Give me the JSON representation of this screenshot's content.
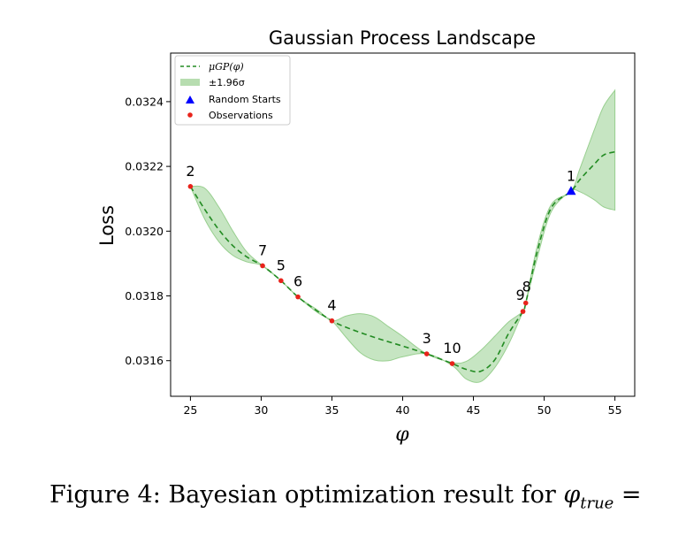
{
  "chart_data": {
    "type": "line",
    "title": "Gaussian Process Landscape",
    "xlabel": "φ",
    "ylabel": "Loss",
    "xlim": [
      23.6,
      56.4
    ],
    "ylim": [
      0.03149,
      0.03255
    ],
    "xticks": [
      25,
      30,
      35,
      40,
      45,
      50,
      55
    ],
    "yticks": [
      0.0316,
      0.0318,
      0.032,
      0.0322,
      0.0324
    ],
    "ytick_labels": [
      "0.0316",
      "0.0318",
      "0.0320",
      "0.0322",
      "0.0324"
    ],
    "grid": false,
    "legend": {
      "position": "top-left",
      "entries": [
        {
          "label": "μGP(φ)",
          "kind": "dashed-line",
          "color": "#228b22"
        },
        {
          "label": "±1.96σ",
          "kind": "band",
          "color": "#98cf8f"
        },
        {
          "label": "Random Starts",
          "kind": "triangle-marker",
          "color": "#0000ff"
        },
        {
          "label": "Observations",
          "kind": "dot-marker",
          "color": "#e8231b"
        }
      ]
    },
    "series": [
      {
        "name": "μGP(φ)",
        "x": [
          25,
          26,
          27,
          28,
          29,
          30.1,
          31.4,
          32.6,
          34,
          35,
          36,
          38,
          40,
          41.7,
          43.5,
          44.5,
          45.5,
          46.5,
          47.5,
          48.5,
          48.7,
          49.5,
          50.5,
          51.9,
          52.5,
          53.5,
          54.2,
          55
        ],
        "y": [
          0.032138,
          0.032068,
          0.032005,
          0.031955,
          0.03192,
          0.031893,
          0.031847,
          0.031797,
          0.031752,
          0.031723,
          0.031703,
          0.031672,
          0.031645,
          0.031621,
          0.031591,
          0.031573,
          0.031567,
          0.031602,
          0.031685,
          0.031752,
          0.031778,
          0.031935,
          0.032072,
          0.032123,
          0.032158,
          0.032205,
          0.032235,
          0.032245
        ]
      },
      {
        "name": "±1.96σ upper",
        "x": [
          25,
          26,
          27,
          28,
          29,
          30.1,
          31.4,
          32.6,
          34,
          35,
          36,
          37,
          38,
          39,
          40,
          41.7,
          43.5,
          44.5,
          45.5,
          46.5,
          47.5,
          48.5,
          48.7,
          49.5,
          50.5,
          51.9,
          52.5,
          53.5,
          54.2,
          55
        ],
        "y": [
          0.032138,
          0.032133,
          0.032075,
          0.032,
          0.031935,
          0.031893,
          0.031847,
          0.031797,
          0.031756,
          0.031723,
          0.031738,
          0.031745,
          0.031735,
          0.031705,
          0.031675,
          0.031621,
          0.031594,
          0.031598,
          0.031631,
          0.031675,
          0.03172,
          0.031752,
          0.031778,
          0.031952,
          0.032082,
          0.032123,
          0.03219,
          0.032308,
          0.032385,
          0.032435
        ]
      },
      {
        "name": "±1.96σ lower",
        "x": [
          25,
          26,
          27,
          28,
          29,
          30.1,
          31.4,
          32.6,
          34,
          35,
          36,
          37,
          38,
          39,
          40,
          41.7,
          43.5,
          44.5,
          45.5,
          46.5,
          47.5,
          48.5,
          48.7,
          49.5,
          50.5,
          51.9,
          52.5,
          53.5,
          54.2,
          55
        ],
        "y": [
          0.032138,
          0.032038,
          0.031968,
          0.031925,
          0.031905,
          0.031893,
          0.031847,
          0.031797,
          0.031748,
          0.031723,
          0.031672,
          0.031625,
          0.031602,
          0.0316,
          0.031612,
          0.031621,
          0.031585,
          0.031543,
          0.031535,
          0.031578,
          0.031652,
          0.031752,
          0.031778,
          0.031915,
          0.03206,
          0.032123,
          0.032122,
          0.032098,
          0.032075,
          0.032065
        ]
      }
    ],
    "observations": [
      {
        "label": "2",
        "x": 25.0,
        "y": 0.032138
      },
      {
        "label": "7",
        "x": 30.1,
        "y": 0.031893
      },
      {
        "label": "5",
        "x": 31.4,
        "y": 0.031847
      },
      {
        "label": "6",
        "x": 32.6,
        "y": 0.031797
      },
      {
        "label": "4",
        "x": 35.0,
        "y": 0.031723
      },
      {
        "label": "3",
        "x": 41.7,
        "y": 0.031621
      },
      {
        "label": "10",
        "x": 43.5,
        "y": 0.031591
      },
      {
        "label": "9",
        "x": 48.5,
        "y": 0.031752
      },
      {
        "label": "8",
        "x": 48.7,
        "y": 0.031778
      }
    ],
    "random_starts": [
      {
        "label": "1",
        "x": 51.9,
        "y": 0.032123
      }
    ],
    "colors": {
      "mean_line": "#228b22",
      "band": "#98cf8f",
      "observation": "#e8231b",
      "random_start": "#0000ff"
    }
  },
  "caption": {
    "prefix": "Figure 4: Bayesian optimization result for ",
    "symbol": "φ",
    "subscript": "true",
    "suffix": " ="
  }
}
